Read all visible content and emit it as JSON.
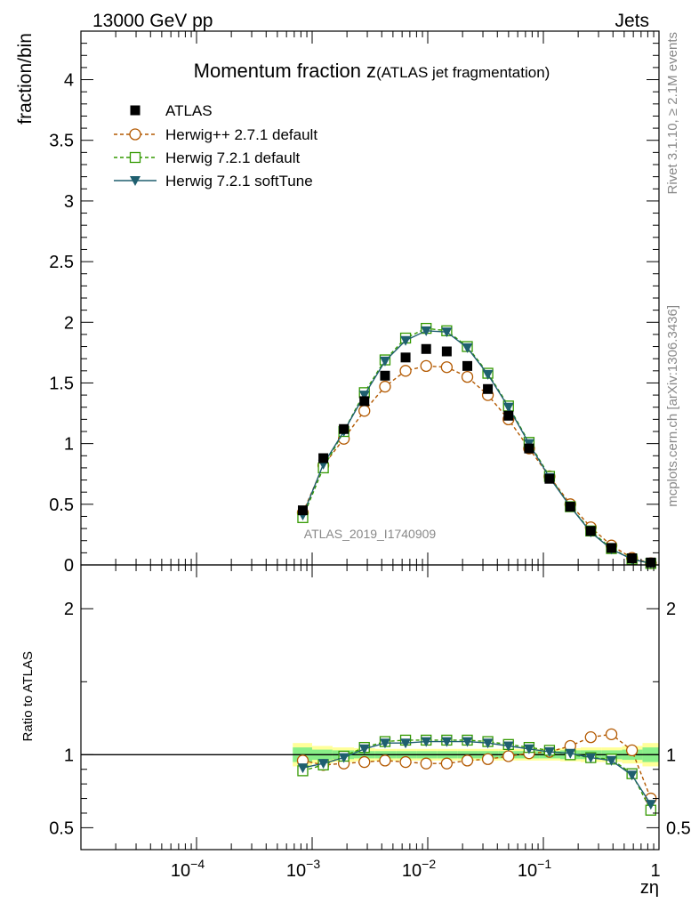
{
  "header": {
    "left_label": "13000 GeV pp",
    "right_label": "Jets",
    "side_top": "Rivet 3.1.10, ≥ 2.1M events",
    "side_bottom": "mcplots.cern.ch [arXiv:1306.3436]",
    "watermark": "ATLAS_2019_I1740909"
  },
  "colors": {
    "atlas": "#000000",
    "herwig_pp": "#b35900",
    "herwig_default": "#339900",
    "herwig_softtune": "#1f5f6f",
    "band_yellow": "#ffff99",
    "band_green": "#88ee88"
  },
  "chart_data": [
    {
      "type": "scatter",
      "title_main": "Momentum fraction z",
      "title_sub": "(ATLAS jet fragmentation)",
      "ylabel": "fraction/bin",
      "xscale": "log",
      "xlim": [
        1e-05,
        1
      ],
      "ylim": [
        0,
        4.4
      ],
      "yticks": [
        {
          "v": 0,
          "label": "0"
        },
        {
          "v": 0.5,
          "label": "0.5"
        },
        {
          "v": 1,
          "label": "1"
        },
        {
          "v": 1.5,
          "label": "1.5"
        },
        {
          "v": 2,
          "label": "2"
        },
        {
          "v": 2.5,
          "label": "2.5"
        },
        {
          "v": 3,
          "label": "3"
        },
        {
          "v": 3.5,
          "label": "3.5"
        },
        {
          "v": 4,
          "label": "4"
        }
      ],
      "legend_position": "top-left",
      "x": [
        0.00083,
        0.00125,
        0.00188,
        0.00283,
        0.00427,
        0.00643,
        0.00969,
        0.0146,
        0.022,
        0.0331,
        0.0499,
        0.0752,
        0.113,
        0.171,
        0.257,
        0.388,
        0.584,
        0.85
      ],
      "series": [
        {
          "name": "ATLAS",
          "style": "atlas",
          "values": [
            0.45,
            0.88,
            1.12,
            1.35,
            1.56,
            1.71,
            1.78,
            1.76,
            1.64,
            1.45,
            1.23,
            0.96,
            0.71,
            0.48,
            0.28,
            0.14,
            0.055,
            0.02
          ]
        },
        {
          "name": "Herwig++ 2.7.1 default",
          "style": "herwig_pp",
          "values": [
            0.43,
            0.82,
            1.04,
            1.27,
            1.47,
            1.6,
            1.64,
            1.63,
            1.55,
            1.4,
            1.2,
            0.96,
            0.73,
            0.5,
            0.31,
            0.16,
            0.058,
            0.014
          ]
        },
        {
          "name": "Herwig 7.2.1 default",
          "style": "herwig_default",
          "values": [
            0.39,
            0.8,
            1.1,
            1.42,
            1.69,
            1.87,
            1.95,
            1.93,
            1.8,
            1.58,
            1.31,
            1.01,
            0.73,
            0.48,
            0.28,
            0.135,
            0.048,
            0.012
          ]
        },
        {
          "name": "Herwig 7.2.1 softTune",
          "style": "herwig_softtune",
          "values": [
            0.41,
            0.83,
            1.1,
            1.4,
            1.68,
            1.85,
            1.93,
            1.92,
            1.79,
            1.57,
            1.3,
            1.0,
            0.72,
            0.48,
            0.27,
            0.13,
            0.047,
            0.013
          ]
        }
      ]
    },
    {
      "type": "scatter",
      "ylabel": "Ratio to ATLAS",
      "xlabel": "zη",
      "xscale": "log",
      "xlim": [
        1e-05,
        1
      ],
      "ylim": [
        0.35,
        2.3
      ],
      "yticks": [
        {
          "v": 0.5,
          "label": "0.5"
        },
        {
          "v": 1,
          "label": "1"
        },
        {
          "v": 2,
          "label": "2"
        }
      ],
      "xticks": [
        {
          "v": 0.0001,
          "base": "10",
          "exp": "−4"
        },
        {
          "v": 0.001,
          "base": "10",
          "exp": "−3"
        },
        {
          "v": 0.01,
          "base": "10",
          "exp": "−2"
        },
        {
          "v": 0.1,
          "base": "10",
          "exp": "−1"
        },
        {
          "v": 1,
          "base": "1",
          "exp": ""
        }
      ],
      "band_edges": [
        0.00068,
        0.001,
        0.0015,
        0.0023,
        0.0035,
        0.0053,
        0.008,
        0.012,
        0.018,
        0.027,
        0.041,
        0.062,
        0.093,
        0.14,
        0.21,
        0.32,
        0.48,
        0.72,
        1.0
      ],
      "band_yellow_half": [
        0.08,
        0.06,
        0.05,
        0.045,
        0.04,
        0.04,
        0.04,
        0.04,
        0.04,
        0.04,
        0.04,
        0.04,
        0.04,
        0.045,
        0.05,
        0.05,
        0.06,
        0.08
      ],
      "band_green_half": [
        0.05,
        0.035,
        0.03,
        0.025,
        0.025,
        0.025,
        0.025,
        0.025,
        0.025,
        0.025,
        0.025,
        0.025,
        0.025,
        0.03,
        0.03,
        0.03,
        0.035,
        0.05
      ],
      "series": [
        {
          "name": "Herwig++ 2.7.1 default",
          "style": "herwig_pp",
          "values": [
            0.96,
            0.93,
            0.94,
            0.95,
            0.96,
            0.95,
            0.94,
            0.94,
            0.96,
            0.97,
            0.99,
            1.01,
            1.02,
            1.06,
            1.12,
            1.14,
            1.03,
            0.7
          ]
        },
        {
          "name": "Herwig 7.2.1 default",
          "style": "herwig_default",
          "values": [
            0.89,
            0.93,
            0.99,
            1.05,
            1.09,
            1.1,
            1.1,
            1.1,
            1.1,
            1.09,
            1.07,
            1.05,
            1.03,
            1.0,
            0.98,
            0.97,
            0.87,
            0.62
          ]
        },
        {
          "name": "Herwig 7.2.1 softTune",
          "style": "herwig_softtune",
          "values": [
            0.91,
            0.94,
            0.98,
            1.04,
            1.08,
            1.08,
            1.09,
            1.09,
            1.09,
            1.08,
            1.06,
            1.04,
            1.02,
            1.01,
            0.98,
            0.96,
            0.86,
            0.66
          ]
        }
      ]
    }
  ]
}
